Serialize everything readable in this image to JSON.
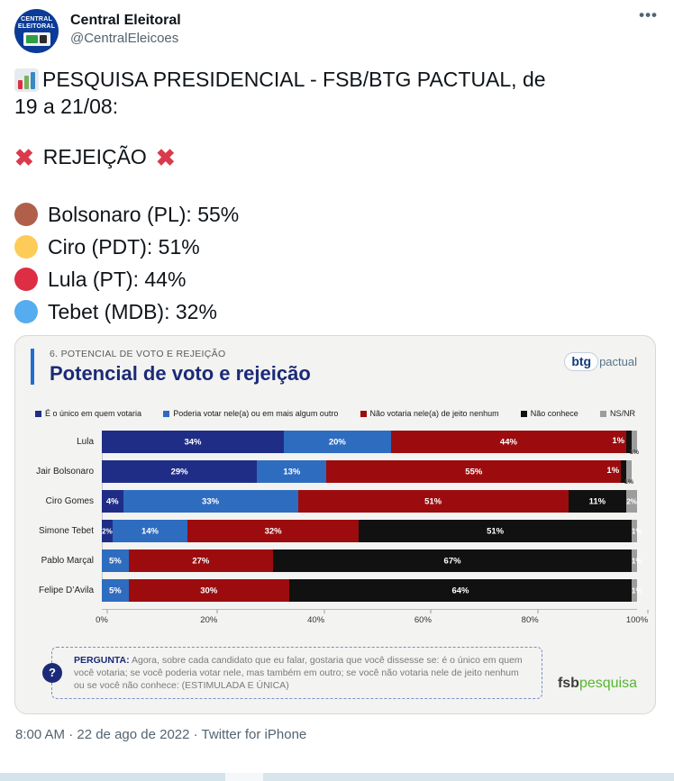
{
  "header": {
    "name": "Central Eleitoral",
    "handle": "@CentralEleicoes",
    "avatar_line1": "CENTRAL",
    "avatar_line2": "ELEITORAL",
    "more_icon": "•••"
  },
  "tweet": {
    "line1": "PESQUISA PRESIDENCIAL - FSB/BTG PACTUAL, de",
    "line2": "19 a 21/08:",
    "rejection_label": "REJEIÇÃO",
    "x_mark": "✖",
    "candidates": [
      {
        "label": "Bolsonaro (PL): 55%",
        "dot_color": "#b0604a"
      },
      {
        "label": "Ciro (PDT): 51%",
        "dot_color": "#fdcb58"
      },
      {
        "label": "Lula (PT): 44%",
        "dot_color": "#dd2e44"
      },
      {
        "label": "Tebet (MDB): 32%",
        "dot_color": "#55acee"
      }
    ]
  },
  "chart_card": {
    "section_label": "6. POTENCIAL DE VOTO E REJEIÇÃO",
    "title": "Potencial de voto e rejeição",
    "btg_logo": {
      "bold": "btg",
      "rest": "pactual"
    },
    "question": {
      "label": "PERGUNTA:",
      "text": " Agora, sobre cada candidato que eu falar, gostaria que você dissesse se: é o único em quem você votaria; se você poderia votar nele, mas também em outro; se você não votaria nele de jeito nenhum ou se você não conhece: (ESTIMULADA E ÚNICA)"
    },
    "fsb_logo": {
      "bold": "fsb",
      "rest": "pesquisa"
    },
    "question_icon": "?"
  },
  "chart_data": {
    "type": "bar",
    "orientation": "horizontal",
    "stacked": true,
    "title": "Potencial de voto e rejeição",
    "categories": [
      "Lula",
      "Jair Bolsonaro",
      "Ciro Gomes",
      "Simone Tebet",
      "Pablo Marçal",
      "Felipe D’Avila"
    ],
    "series": [
      {
        "name": "É o único em quem votaria",
        "color": "#1f2d87",
        "values": [
          34,
          29,
          4,
          2,
          0,
          0
        ]
      },
      {
        "name": "Poderia votar nele(a) ou em mais algum outro",
        "color": "#2e6cc0",
        "values": [
          20,
          13,
          33,
          14,
          5,
          5
        ]
      },
      {
        "name": "Não votaria nele(a) de jeito nenhum",
        "color": "#9c0c0e",
        "values": [
          44,
          55,
          51,
          32,
          27,
          30
        ]
      },
      {
        "name": "Não conhece",
        "color": "#111111",
        "values": [
          1,
          1,
          11,
          51,
          67,
          64
        ]
      },
      {
        "name": "NS/NR",
        "color": "#9d9d9d",
        "values": [
          1,
          1,
          2,
          1,
          1,
          1
        ]
      }
    ],
    "x_ticks": [
      "0%",
      "20%",
      "40%",
      "60%",
      "80%",
      "100%"
    ],
    "xlim": [
      0,
      100
    ],
    "legend_position": "top",
    "grid": false
  },
  "footer": {
    "timestamp": "8:00 AM · 22 de ago de 2022 · Twitter for iPhone"
  }
}
